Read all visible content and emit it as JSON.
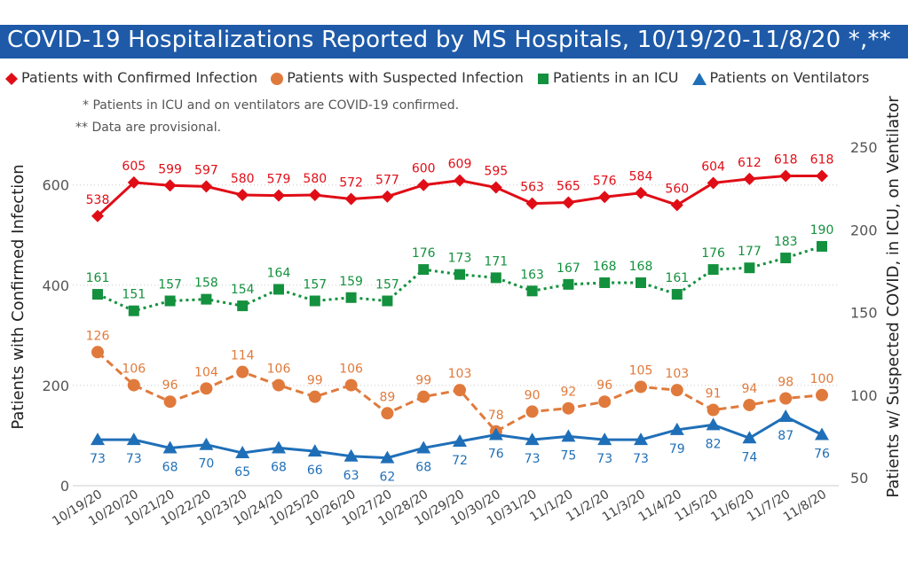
{
  "title": "COVID-19 Hospitalizations Reported by MS Hospitals, 10/19/20-11/8/20 *,**",
  "notes": [
    "* Patients in ICU and on ventilators are COVID-19 confirmed.",
    "** Data are provisional."
  ],
  "colors": {
    "title_bar": "#1e5aa8",
    "confirmed": "#e00d16",
    "suspected": "#e07a3c",
    "icu": "#14913e",
    "ventilator": "#1f6fb8"
  },
  "chart_data": {
    "type": "line",
    "categories": [
      "10/19/20",
      "10/20/20",
      "10/21/20",
      "10/22/20",
      "10/23/20",
      "10/24/20",
      "10/25/20",
      "10/26/20",
      "10/27/20",
      "10/28/20",
      "10/29/20",
      "10/30/20",
      "10/31/20",
      "11/1/20",
      "11/2/20",
      "11/3/20",
      "11/4/20",
      "11/5/20",
      "11/6/20",
      "11/7/20",
      "11/8/20"
    ],
    "ylabel_left": "Patients with Confirmed Infection",
    "ylabel_right": "Patients w/ Suspected COVID, in ICU, on Ventilator",
    "ylim_left": [
      0,
      660
    ],
    "ylim_right": [
      50,
      265
    ],
    "yticks_left": [
      0,
      200,
      400,
      600
    ],
    "yticks_right": [
      50,
      100,
      150,
      200,
      250
    ],
    "legend_position": "top",
    "series": [
      {
        "name": "Patients with Confirmed Infection",
        "axis": "left",
        "marker": "diamond",
        "line": "solid",
        "color": "#e00d16",
        "values": [
          538,
          605,
          599,
          597,
          580,
          579,
          580,
          572,
          577,
          600,
          609,
          595,
          563,
          565,
          576,
          584,
          560,
          604,
          612,
          618,
          618
        ]
      },
      {
        "name": "Patients with Suspected Infection",
        "axis": "right",
        "marker": "circle",
        "line": "dashed",
        "color": "#e07a3c",
        "values": [
          126,
          106,
          96,
          104,
          114,
          106,
          99,
          106,
          89,
          99,
          103,
          78,
          90,
          92,
          96,
          105,
          103,
          91,
          94,
          98,
          100
        ]
      },
      {
        "name": "Patients in an ICU",
        "axis": "right",
        "marker": "square",
        "line": "dotted",
        "color": "#14913e",
        "values": [
          161,
          151,
          157,
          158,
          154,
          164,
          157,
          159,
          157,
          176,
          173,
          171,
          163,
          167,
          168,
          168,
          161,
          176,
          177,
          183,
          190
        ]
      },
      {
        "name": "Patients on Ventilators",
        "axis": "right",
        "marker": "triangle",
        "line": "solid",
        "color": "#1f6fb8",
        "values": [
          73,
          73,
          68,
          70,
          65,
          68,
          66,
          63,
          62,
          68,
          72,
          76,
          73,
          75,
          73,
          73,
          79,
          82,
          74,
          87,
          76
        ]
      }
    ]
  }
}
